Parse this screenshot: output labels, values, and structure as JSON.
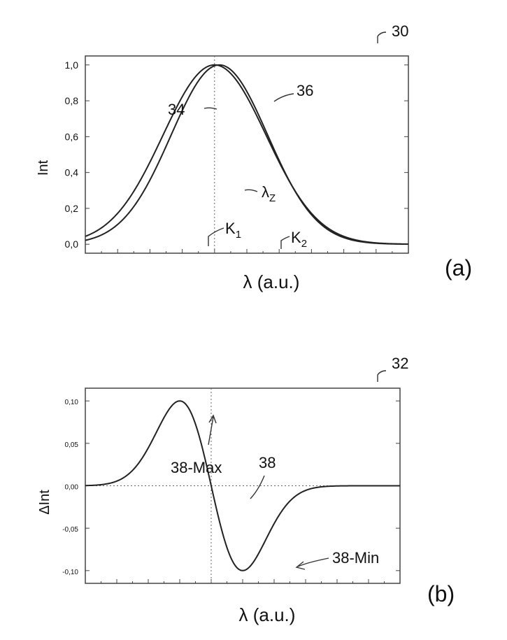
{
  "chart_data": [
    {
      "type": "line",
      "panel_label": "(a)",
      "figure_ref": "30",
      "ylabel": "Int",
      "xlabel": "λ (a.u.)",
      "xlim": [
        0,
        10
      ],
      "ylim": [
        -0.05,
        1.05
      ],
      "yticks": [
        "0,0",
        "0,2",
        "0,4",
        "0,6",
        "0,8",
        "1,0"
      ],
      "ytick_values": [
        0.0,
        0.2,
        0.4,
        0.6,
        0.8,
        1.0
      ],
      "series": [
        {
          "name": "34",
          "type": "gaussian",
          "center": 4.0,
          "sigma": 1.6,
          "amplitude": 1.0
        },
        {
          "name": "36",
          "type": "gaussian",
          "center": 4.15,
          "sigma": 1.5,
          "amplitude": 1.0
        }
      ],
      "annotations": {
        "center": {
          "text": "λ",
          "sub": "Z",
          "x": 4.0
        },
        "k1": {
          "text": "K",
          "sub": "1",
          "x": 2.5
        },
        "k2": {
          "text": "K",
          "sub": "2",
          "x": 5.8
        }
      }
    },
    {
      "type": "line",
      "panel_label": "(b)",
      "figure_ref": "32",
      "ylabel": "ΔInt",
      "xlabel": "λ (a.u.)",
      "xlim": [
        0,
        10
      ],
      "ylim": [
        -0.115,
        0.115
      ],
      "yticks": [
        "0,10",
        "0,05",
        "0,00",
        "-0,05",
        "-0,10"
      ],
      "ytick_values": [
        0.1,
        0.05,
        0.0,
        -0.05,
        -0.1
      ],
      "series": [
        {
          "name": "38",
          "type": "derivative",
          "center": 4.0,
          "sigma": 1.0,
          "amplitude": 0.1
        }
      ],
      "annotations": {
        "max": {
          "text": "38-Max",
          "x": 3.0,
          "y": 0.1
        },
        "curve": {
          "text": "38",
          "x": 4.1,
          "y": -0.014
        },
        "min": {
          "text": "38-Min",
          "x": 5.0,
          "y": -0.1
        },
        "center_x": 4.0
      }
    }
  ]
}
